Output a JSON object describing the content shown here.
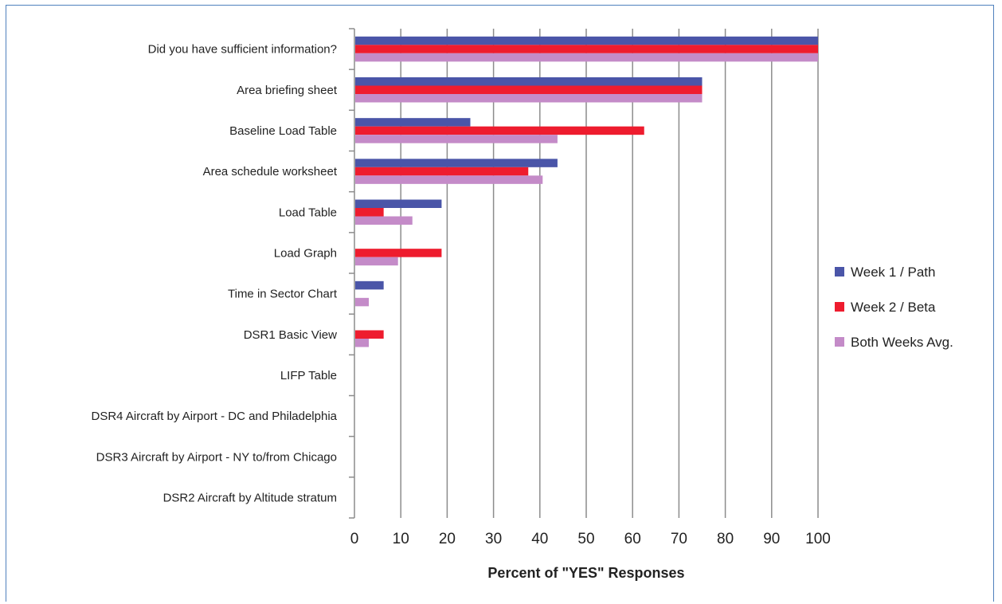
{
  "chart_data": {
    "type": "bar",
    "orientation": "horizontal",
    "categories": [
      "Did you have sufficient information?",
      "Area briefing sheet",
      "Baseline Load Table",
      "Area schedule worksheet",
      "Load Table",
      "Load Graph",
      "Time in Sector Chart",
      "DSR1 Basic View",
      "LIFP Table",
      "DSR4 Aircraft by Airport - DC and Philadelphia",
      "DSR3 Aircraft by Airport - NY to/from Chicago",
      "DSR2 Aircraft by Altitude stratum"
    ],
    "series": [
      {
        "name": "Week 1 / Path",
        "color": "#4a55a8",
        "values": [
          100,
          75,
          25,
          43.8,
          18.8,
          0,
          6.3,
          0,
          0,
          0,
          0,
          0
        ]
      },
      {
        "name": "Week 2 / Beta",
        "color": "#ee1c2e",
        "values": [
          100,
          75,
          62.5,
          37.5,
          6.3,
          18.8,
          0,
          6.3,
          0,
          0,
          0,
          0
        ]
      },
      {
        "name": "Both Weeks Avg.",
        "color": "#c48bc8",
        "values": [
          100,
          75,
          43.8,
          40.6,
          12.5,
          9.4,
          3.1,
          3.1,
          0,
          0,
          0,
          0
        ]
      }
    ],
    "xlabel": "Percent of \"YES\" Responses",
    "ylabel": "",
    "xlim": [
      0,
      100
    ],
    "xticks": [
      "0",
      "10",
      "20",
      "30",
      "40",
      "50",
      "60",
      "70",
      "80",
      "90",
      "100"
    ],
    "grid": "vertical",
    "legend_position": "right"
  }
}
